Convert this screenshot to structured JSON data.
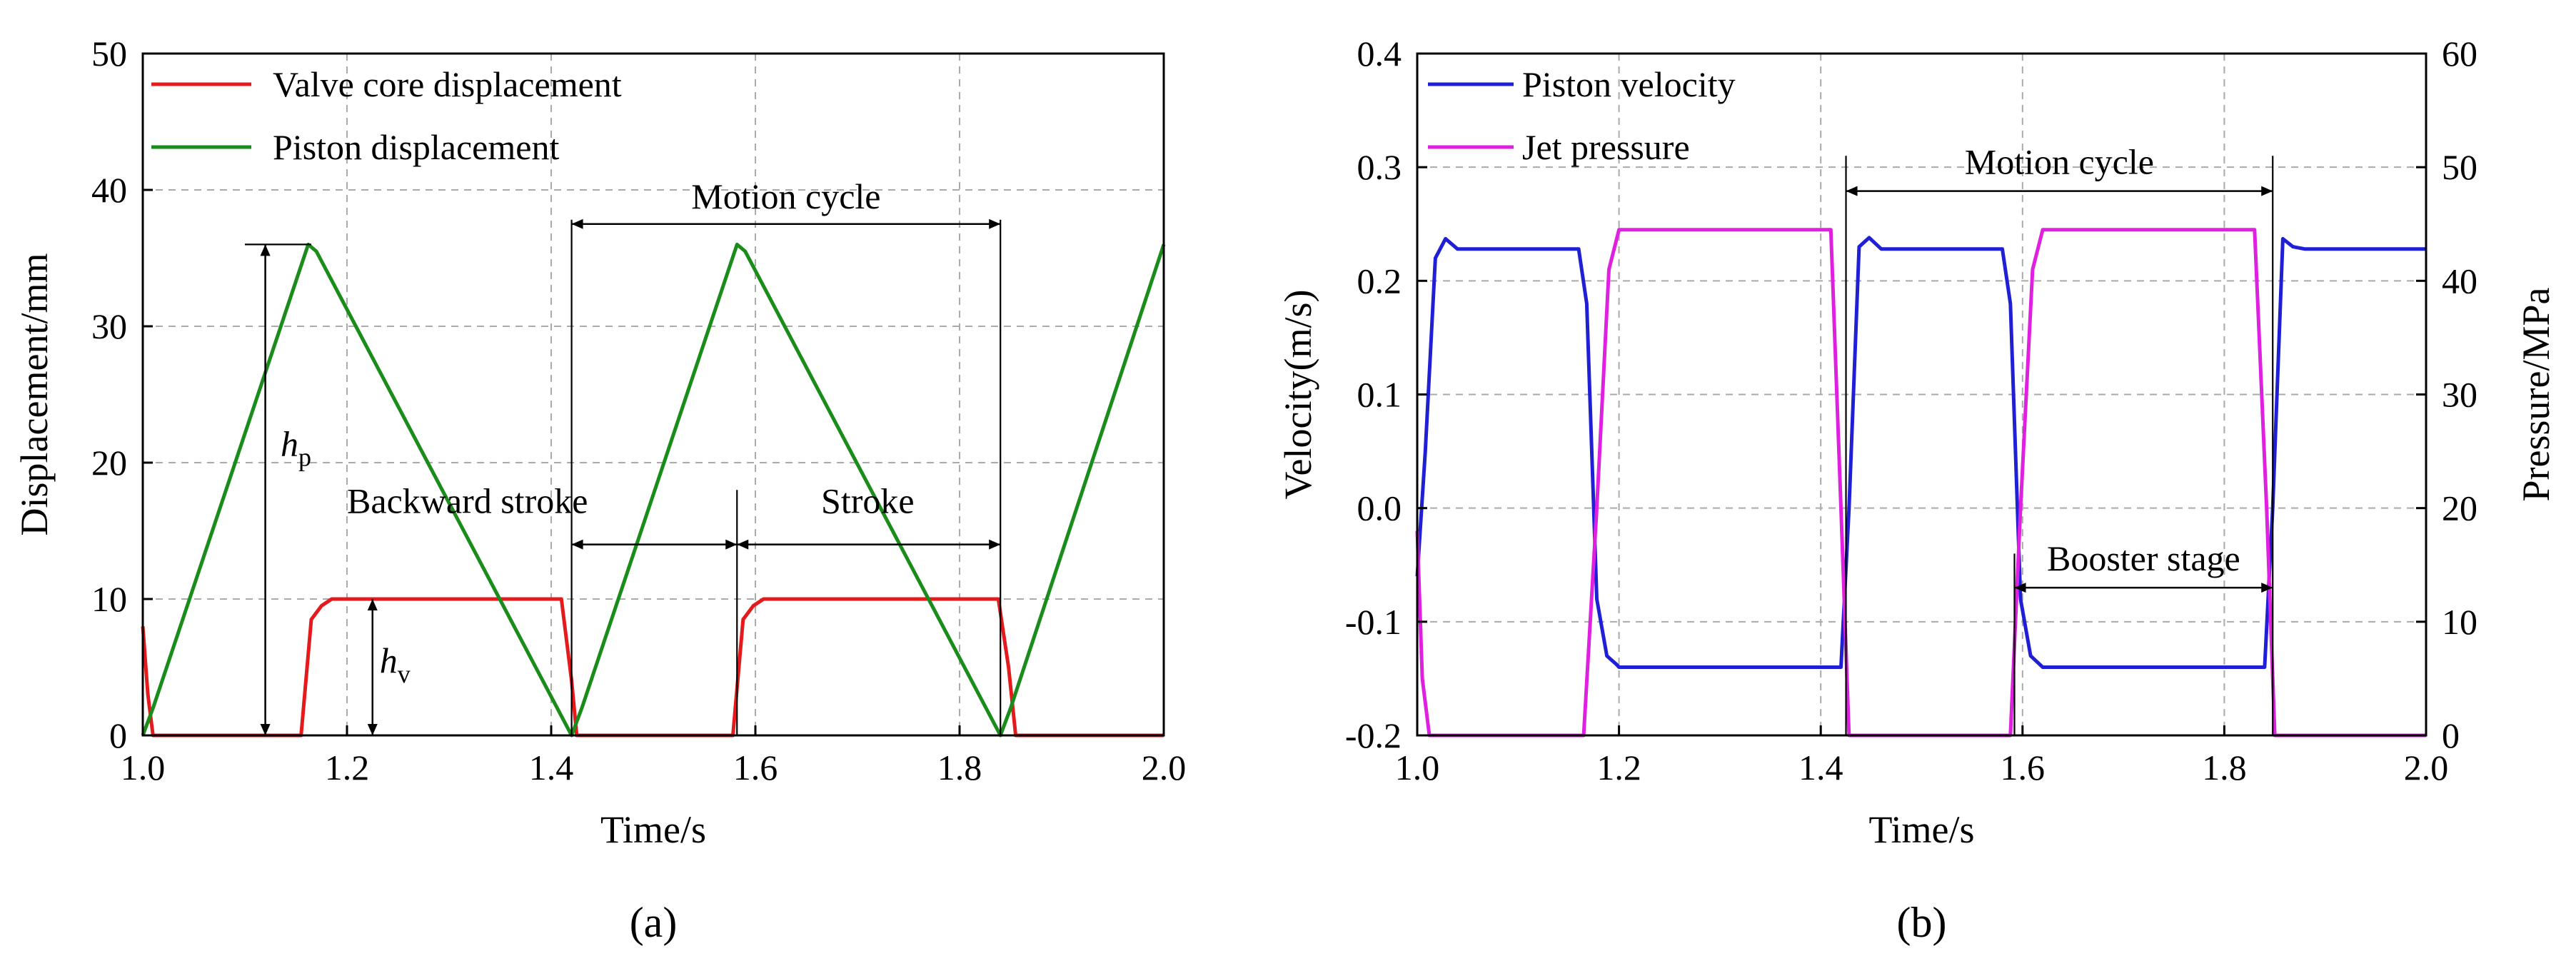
{
  "chart_data": [
    {
      "type": "line",
      "panel_label": "(a)",
      "xlabel": "Time/s",
      "ylabel": "Displacement/mm",
      "xlim": [
        1.0,
        2.0
      ],
      "ylim": [
        0,
        50
      ],
      "xticks": [
        "1.0",
        "1.2",
        "1.4",
        "1.6",
        "1.8",
        "2.0"
      ],
      "yticks": [
        "0",
        "10",
        "20",
        "30",
        "40",
        "50"
      ],
      "grid": true,
      "legend_position": "top-left",
      "series": [
        {
          "name": "Valve core displacement",
          "color": "#e41a1c",
          "x": [
            1.0,
            1.005,
            1.01,
            1.155,
            1.165,
            1.175,
            1.185,
            1.4,
            1.41,
            1.42,
            1.425,
            1.578,
            1.588,
            1.598,
            1.608,
            1.838,
            1.848,
            1.855,
            2.0
          ],
          "y": [
            8,
            3,
            0,
            0,
            8.5,
            9.5,
            10,
            10,
            10,
            4,
            0,
            0,
            8.5,
            9.5,
            10,
            10,
            5,
            0,
            0
          ]
        },
        {
          "name": "Piston displacement",
          "color": "#1a8c1a",
          "x": [
            1.0,
            1.01,
            1.162,
            1.17,
            1.42,
            1.43,
            1.582,
            1.59,
            1.84,
            1.85,
            2.0
          ],
          "y": [
            0,
            2,
            36,
            35.5,
            0,
            2,
            36,
            35.5,
            0,
            2,
            36
          ]
        }
      ],
      "annotations": {
        "motion_cycle": "Motion cycle",
        "backward_stroke": "Backward stroke",
        "stroke": "Stroke",
        "hp_main": "h",
        "hp_sub": "p",
        "hv_main": "h",
        "hv_sub": "v"
      }
    },
    {
      "type": "line",
      "panel_label": "(b)",
      "xlabel": "Time/s",
      "ylabel_left": "Velocity(m/s)",
      "ylabel_right": "Pressure/MPa",
      "xlim": [
        1.0,
        2.0
      ],
      "ylim_left": [
        -0.2,
        0.4
      ],
      "ylim_right": [
        0,
        60
      ],
      "xticks": [
        "1.0",
        "1.2",
        "1.4",
        "1.6",
        "1.8",
        "2.0"
      ],
      "yticks_left": [
        "-0.2",
        "-0.1",
        "0.0",
        "0.1",
        "0.2",
        "0.3",
        "0.4"
      ],
      "yticks_right": [
        "0",
        "10",
        "20",
        "30",
        "40",
        "50",
        "60"
      ],
      "left_axis_color": "#1f1fd6",
      "right_axis_color": "#e020e0",
      "grid": true,
      "legend_position": "top-left",
      "series": [
        {
          "name": "Piston velocity",
          "axis": "left",
          "color": "#1f1fd6",
          "x": [
            1.0,
            1.008,
            1.018,
            1.028,
            1.04,
            1.16,
            1.168,
            1.178,
            1.188,
            1.198,
            1.2,
            1.42,
            1.428,
            1.438,
            1.448,
            1.46,
            1.58,
            1.588,
            1.598,
            1.608,
            1.62,
            1.84,
            1.848,
            1.858,
            1.868,
            1.88,
            2.0
          ],
          "y": [
            -0.06,
            0.05,
            0.22,
            0.237,
            0.228,
            0.228,
            0.18,
            -0.08,
            -0.13,
            -0.138,
            -0.14,
            -0.14,
            0.0,
            0.23,
            0.238,
            0.228,
            0.228,
            0.18,
            -0.08,
            -0.13,
            -0.14,
            -0.14,
            0.0,
            0.237,
            0.23,
            0.228,
            0.228
          ]
        },
        {
          "name": "Jet pressure",
          "axis": "right",
          "color": "#e020e0",
          "x": [
            1.0,
            1.005,
            1.012,
            1.165,
            1.178,
            1.19,
            1.2,
            1.41,
            1.42,
            1.428,
            1.588,
            1.598,
            1.61,
            1.62,
            1.83,
            1.842,
            1.85,
            2.0
          ],
          "y": [
            18,
            5,
            0,
            0,
            20,
            41,
            44.5,
            44.5,
            20,
            0,
            0,
            20,
            41,
            44.5,
            44.5,
            20,
            0,
            0
          ]
        }
      ],
      "annotations": {
        "motion_cycle": "Motion cycle",
        "booster_stage": "Booster stage"
      }
    }
  ]
}
